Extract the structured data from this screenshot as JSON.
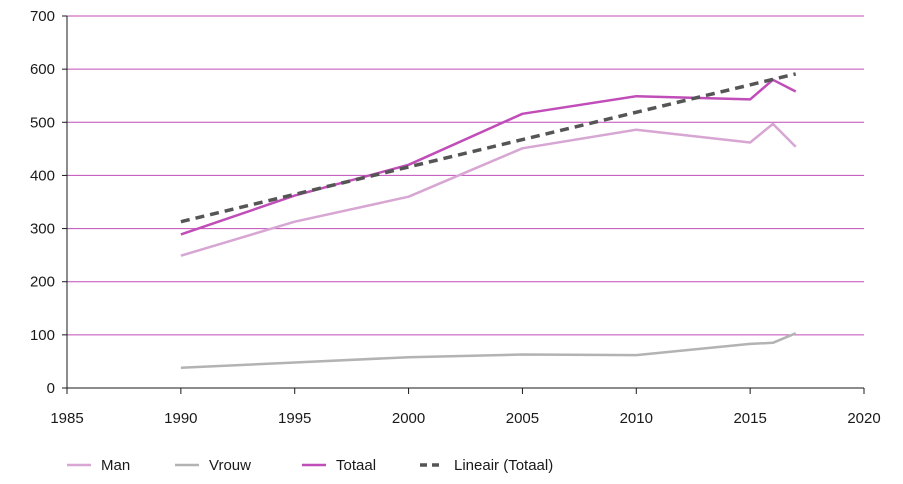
{
  "chart_data": {
    "type": "line",
    "xlim": [
      1985,
      2020
    ],
    "ylim": [
      0,
      700
    ],
    "x_ticks": [
      1985,
      1990,
      1995,
      2000,
      2005,
      2010,
      2015,
      2020
    ],
    "y_ticks": [
      0,
      100,
      200,
      300,
      400,
      500,
      600,
      700
    ],
    "x_tick_labels": [
      "1985",
      "1990",
      "1995",
      "2000",
      "2005",
      "2010",
      "2015",
      "2020"
    ],
    "y_tick_labels": [
      "0",
      "100",
      "200",
      "300",
      "400",
      "500",
      "600",
      "700"
    ],
    "grid": "horizontal",
    "legend_position": "bottom-left",
    "series": [
      {
        "name": "Man",
        "color": "#d7a6d3",
        "style": "solid",
        "points": [
          [
            1990,
            249
          ],
          [
            1995,
            313
          ],
          [
            2000,
            360
          ],
          [
            2005,
            451
          ],
          [
            2010,
            486
          ],
          [
            2015,
            462
          ],
          [
            2016,
            497
          ],
          [
            2017,
            454
          ]
        ]
      },
      {
        "name": "Vrouw",
        "color": "#b3b3b3",
        "style": "solid",
        "points": [
          [
            1990,
            38
          ],
          [
            1995,
            48
          ],
          [
            2000,
            58
          ],
          [
            2005,
            63
          ],
          [
            2010,
            62
          ],
          [
            2015,
            83
          ],
          [
            2016,
            85
          ],
          [
            2017,
            103
          ]
        ]
      },
      {
        "name": "Totaal",
        "color": "#c04db8",
        "style": "solid",
        "points": [
          [
            1990,
            289
          ],
          [
            1995,
            362
          ],
          [
            2000,
            420
          ],
          [
            2005,
            516
          ],
          [
            2010,
            549
          ],
          [
            2015,
            543
          ],
          [
            2016,
            580
          ],
          [
            2017,
            558
          ]
        ]
      },
      {
        "name": "Lineair (Totaal)",
        "color": "#555555",
        "style": "dashed",
        "points": [
          [
            1990,
            313
          ],
          [
            2017,
            591
          ]
        ]
      }
    ],
    "colors": {
      "grid": "#c04db8",
      "axis": "#1a1a1a"
    }
  }
}
